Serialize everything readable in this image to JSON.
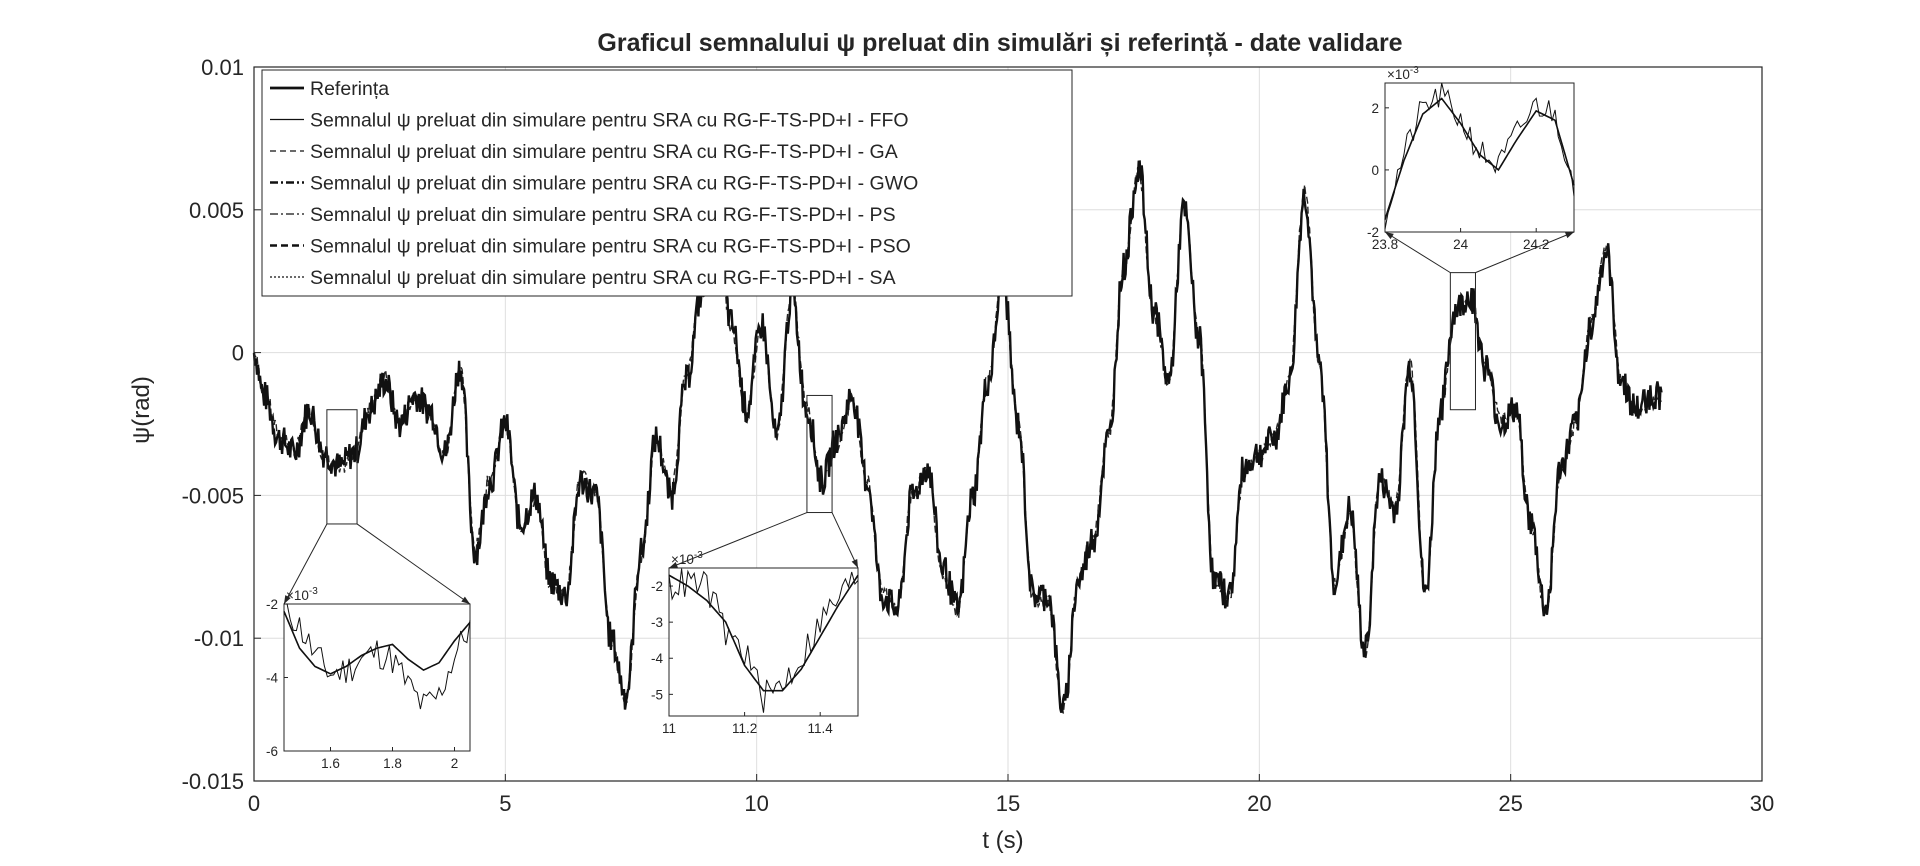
{
  "chart_data": {
    "type": "line",
    "title": "Graficul semnalului ψ preluat din simulări și referință - date validare",
    "xlabel": "t (s)",
    "ylabel": "ψ(rad)",
    "xlim": [
      0,
      30
    ],
    "ylim": [
      -0.015,
      0.01
    ],
    "xticks": [
      0,
      5,
      10,
      15,
      20,
      25,
      30
    ],
    "xtick_labels": [
      "0",
      "5",
      "10",
      "15",
      "20",
      "25",
      "30"
    ],
    "yticks": [
      0.01,
      0.005,
      0,
      -0.005,
      -0.01,
      -0.015
    ],
    "ytick_labels": [
      "0.01",
      "0.005",
      "0",
      "-0.005",
      "-0.01",
      "-0.015"
    ],
    "grid": true,
    "legend_position": "top-left",
    "series": [
      {
        "name": "Referința",
        "style": "solid-thick"
      },
      {
        "name": "Semnalul ψ preluat din simulare pentru SRA cu RG-F-TS-PD+I - FFO",
        "style": "solid-thin"
      },
      {
        "name": "Semnalul ψ preluat din simulare pentru SRA cu RG-F-TS-PD+I - GA",
        "style": "dashed"
      },
      {
        "name": "Semnalul ψ preluat din simulare pentru SRA cu RG-F-TS-PD+I - GWO",
        "style": "dashdot-thick"
      },
      {
        "name": "Semnalul ψ preluat din simulare pentru SRA cu RG-F-TS-PD+I - PS",
        "style": "dashdot"
      },
      {
        "name": "Semnalul ψ preluat din simulare pentru SRA cu RG-F-TS-PD+I - PSO",
        "style": "dashed-thick"
      },
      {
        "name": "Semnalul ψ preluat din simulare pentru SRA cu RG-F-TS-PD+I - SA",
        "style": "dotted"
      }
    ],
    "reference_signal": {
      "x": [
        0,
        0.2,
        0.5,
        0.8,
        1.1,
        1.4,
        1.7,
        2.0,
        2.3,
        2.6,
        2.9,
        3.2,
        3.5,
        3.8,
        4.1,
        4.4,
        4.7,
        5.0,
        5.3,
        5.6,
        5.9,
        6.2,
        6.5,
        6.8,
        7.1,
        7.4,
        7.7,
        8.0,
        8.3,
        8.6,
        8.9,
        9.2,
        9.5,
        9.8,
        10.1,
        10.4,
        10.7,
        11.0,
        11.3,
        11.6,
        11.9,
        12.2,
        12.5,
        12.8,
        13.1,
        13.4,
        13.7,
        14.0,
        14.3,
        14.6,
        14.9,
        15.2,
        15.5,
        15.8,
        16.1,
        16.4,
        16.7,
        17.0,
        17.3,
        17.6,
        17.9,
        18.2,
        18.5,
        18.8,
        19.1,
        19.4,
        19.7,
        20.0,
        20.3,
        20.6,
        20.9,
        21.2,
        21.5,
        21.8,
        22.1,
        22.4,
        22.7,
        23.0,
        23.3,
        23.6,
        23.9,
        24.2,
        24.5,
        24.8,
        25.1,
        25.4,
        25.7,
        26.0,
        26.3,
        26.6,
        26.9,
        27.2,
        27.5,
        27.8,
        28.0
      ],
      "y": [
        0.0,
        -0.0015,
        -0.003,
        -0.0035,
        -0.002,
        -0.0035,
        -0.004,
        -0.0035,
        -0.002,
        -0.001,
        -0.0025,
        -0.0015,
        -0.002,
        -0.0035,
        -0.0005,
        -0.007,
        -0.0045,
        -0.0025,
        -0.006,
        -0.005,
        -0.008,
        -0.0085,
        -0.0045,
        -0.005,
        -0.01,
        -0.012,
        -0.007,
        -0.003,
        -0.005,
        -0.001,
        0.002,
        0.0045,
        0.001,
        -0.002,
        0.001,
        -0.003,
        0.002,
        -0.002,
        -0.0045,
        -0.003,
        -0.0015,
        -0.0045,
        -0.0085,
        -0.009,
        -0.005,
        -0.004,
        -0.0075,
        -0.009,
        -0.005,
        -0.001,
        0.0025,
        -0.0025,
        -0.0085,
        -0.0085,
        -0.0125,
        -0.008,
        -0.0065,
        -0.003,
        0.003,
        0.0065,
        0.0015,
        -0.001,
        0.005,
        0.0005,
        -0.008,
        -0.0085,
        -0.004,
        -0.0035,
        -0.003,
        -0.001,
        0.0055,
        -0.0005,
        -0.008,
        -0.0055,
        -0.0105,
        -0.0045,
        -0.0055,
        -0.0005,
        -0.0085,
        -0.002,
        0.0015,
        0.002,
        -0.0005,
        -0.0025,
        -0.002,
        -0.006,
        -0.009,
        -0.004,
        -0.0025,
        0.001,
        0.0035,
        -0.001,
        -0.002,
        -0.0015,
        -0.0015
      ]
    },
    "insets": [
      {
        "ylabel_exponent": "×10",
        "exponent_power": "-3",
        "xlim": [
          1.45,
          2.05
        ],
        "ylim": [
          -6,
          -2
        ],
        "xtick_labels": [
          "1.6",
          "1.8",
          "2"
        ],
        "ytick_labels": [
          "-2",
          "-4",
          "-6"
        ],
        "reference_x": [
          1.45,
          1.5,
          1.55,
          1.6,
          1.65,
          1.7,
          1.75,
          1.8,
          1.85,
          1.9,
          1.95,
          2.0,
          2.05
        ],
        "reference_y": [
          -2.0,
          -2.6,
          -3.4,
          -3.9,
          -3.8,
          -3.5,
          -3.3,
          -3.5,
          -4.2,
          -4.8,
          -4.5,
          -3.4,
          -2.6
        ],
        "simulated_x": [
          1.45,
          1.5,
          1.55,
          1.6,
          1.65,
          1.7,
          1.75,
          1.8,
          1.85,
          1.9,
          1.95,
          2.0,
          2.05
        ],
        "simulated_y": [
          -2.2,
          -3.2,
          -3.7,
          -3.9,
          -3.7,
          -3.4,
          -3.2,
          -3.1,
          -3.5,
          -3.8,
          -3.6,
          -3.0,
          -2.5
        ]
      },
      {
        "ylabel_exponent": "×10",
        "exponent_power": "-3",
        "xlim": [
          11.0,
          11.5
        ],
        "ylim": [
          -5.6,
          -1.5
        ],
        "xtick_labels": [
          "11",
          "11.2",
          "11.4"
        ],
        "ytick_labels": [
          "-2",
          "-3",
          "-4",
          "-5"
        ],
        "reference_x": [
          11.0,
          11.05,
          11.1,
          11.15,
          11.2,
          11.25,
          11.3,
          11.35,
          11.4,
          11.45,
          11.5
        ],
        "reference_y": [
          -2.0,
          -1.9,
          -2.0,
          -3.3,
          -3.8,
          -5.1,
          -4.7,
          -4.0,
          -3.0,
          -2.3,
          -1.7
        ],
        "simulated_x": [
          11.0,
          11.05,
          11.1,
          11.15,
          11.2,
          11.25,
          11.3,
          11.35,
          11.4,
          11.45,
          11.5
        ],
        "simulated_y": [
          -1.7,
          -2.0,
          -2.4,
          -3.0,
          -4.2,
          -4.9,
          -4.9,
          -4.3,
          -3.4,
          -2.5,
          -1.7
        ]
      },
      {
        "ylabel_exponent": "×10",
        "exponent_power": "-3",
        "xlim": [
          23.8,
          24.3
        ],
        "ylim": [
          -2,
          2.8
        ],
        "xtick_labels": [
          "23.8",
          "24",
          "24.2"
        ],
        "ytick_labels": [
          "2",
          "0",
          "-2"
        ],
        "reference_x": [
          23.8,
          23.85,
          23.9,
          23.95,
          24.0,
          24.05,
          24.1,
          24.15,
          24.2,
          24.25,
          24.3
        ],
        "reference_y": [
          -1.5,
          0.5,
          2.0,
          2.4,
          1.6,
          0.6,
          0.1,
          1.2,
          2.1,
          1.8,
          -0.4
        ],
        "simulated_x": [
          23.8,
          23.85,
          23.9,
          23.95,
          24.0,
          24.05,
          24.1,
          24.15,
          24.2,
          24.25,
          24.3
        ],
        "simulated_y": [
          -1.6,
          0.3,
          1.8,
          2.3,
          1.5,
          0.5,
          0.0,
          1.0,
          1.9,
          1.6,
          -0.5
        ]
      }
    ]
  }
}
